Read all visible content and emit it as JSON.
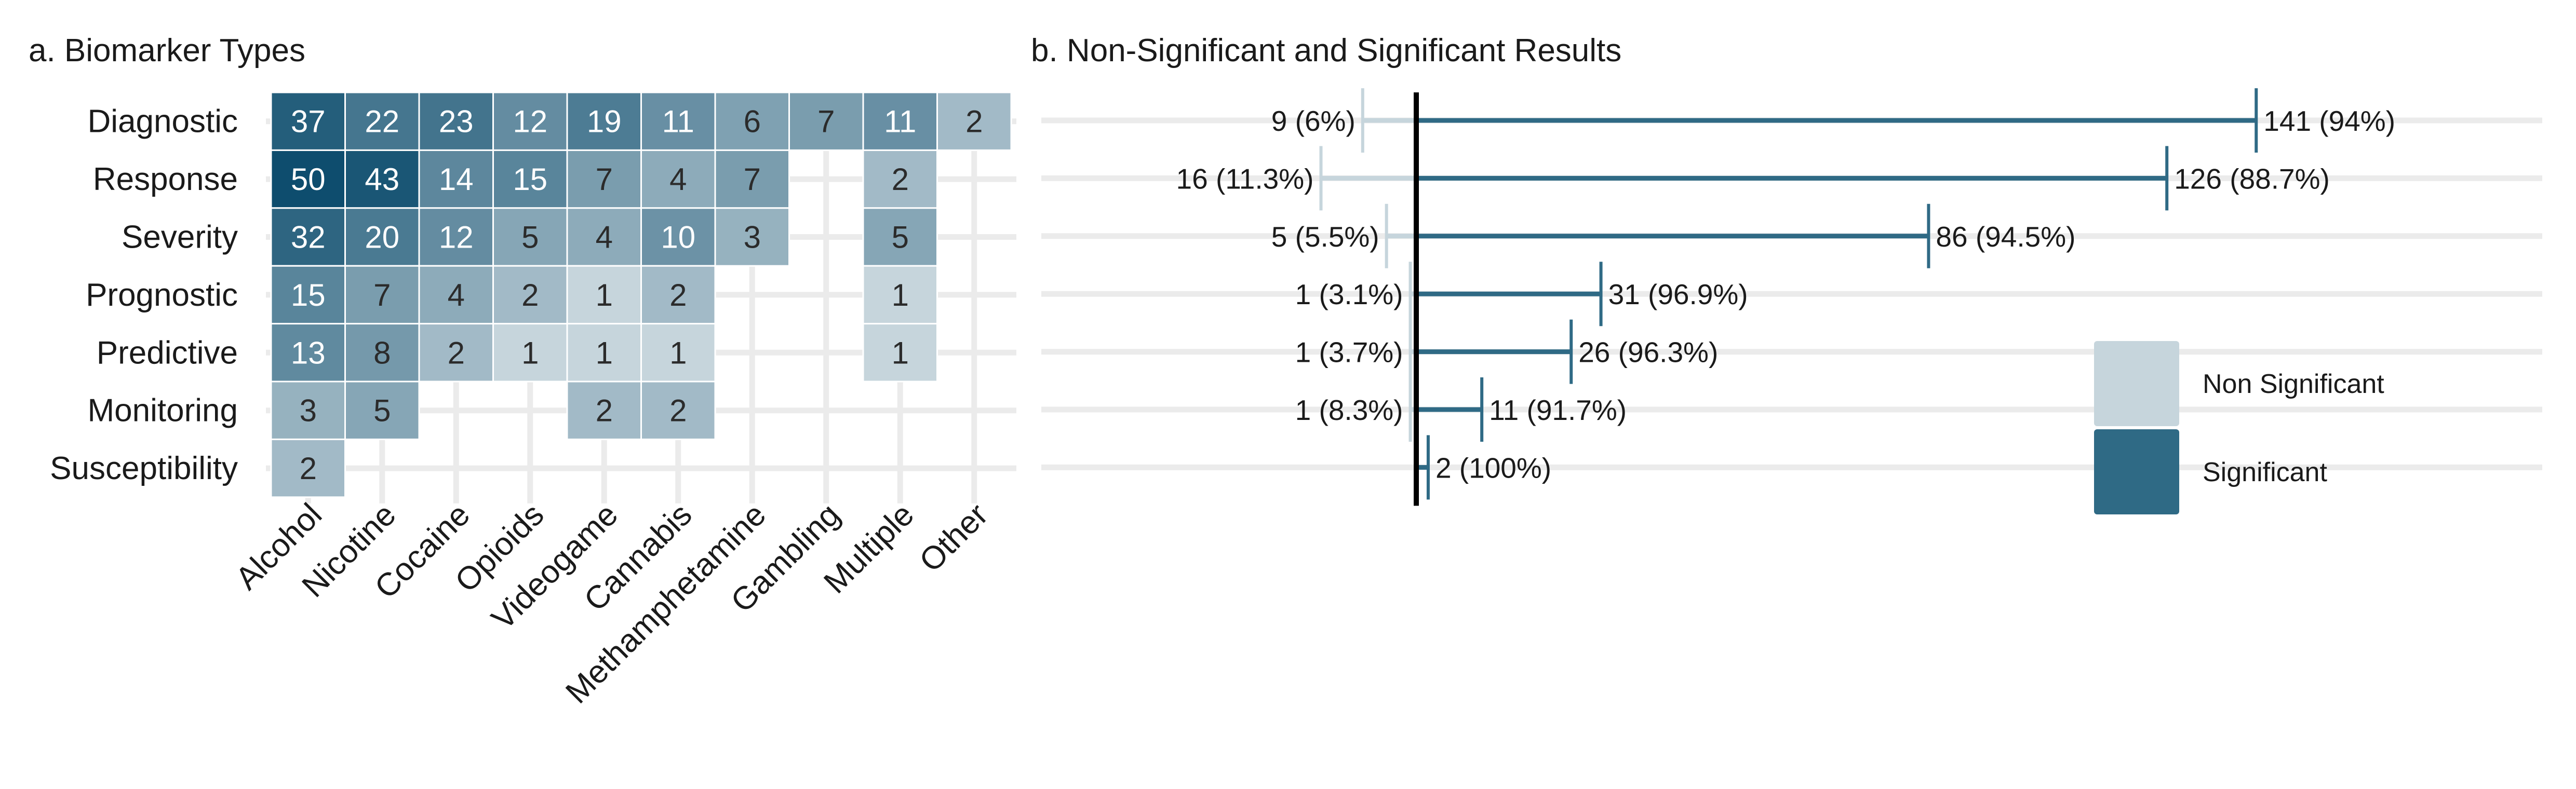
{
  "chart_data": [
    {
      "type": "heatmap",
      "title": "a. Biomarker Types",
      "rows": [
        "Diagnostic",
        "Response",
        "Severity",
        "Prognostic",
        "Predictive",
        "Monitoring",
        "Susceptibility"
      ],
      "columns": [
        "Alcohol",
        "Nicotine",
        "Cocaine",
        "Opioids",
        "Videogame",
        "Cannabis",
        "Methamphetamine",
        "Gambling",
        "Multiple",
        "Other"
      ],
      "values": [
        [
          37,
          22,
          23,
          12,
          19,
          11,
          6,
          7,
          11,
          2
        ],
        [
          50,
          43,
          14,
          15,
          7,
          4,
          7,
          null,
          2,
          null
        ],
        [
          32,
          20,
          12,
          5,
          4,
          10,
          3,
          null,
          5,
          null
        ],
        [
          15,
          7,
          4,
          2,
          1,
          2,
          null,
          null,
          1,
          null
        ],
        [
          13,
          8,
          2,
          1,
          1,
          1,
          null,
          null,
          1,
          null
        ],
        [
          3,
          5,
          null,
          null,
          2,
          2,
          null,
          null,
          null,
          null
        ],
        [
          2,
          null,
          null,
          null,
          null,
          null,
          null,
          null,
          null,
          null
        ]
      ],
      "color_low": "#c6d5dc",
      "color_high": "#0e4d6e",
      "grid": true
    },
    {
      "type": "bar",
      "title": "b. Non-Significant and Significant Results",
      "orientation": "diverging-horizontal",
      "categories": [
        "Diagnostic",
        "Response",
        "Severity",
        "Prognostic",
        "Predictive",
        "Monitoring",
        "Susceptibility"
      ],
      "series": [
        {
          "name": "Non Significant",
          "color": "#c6d5dc",
          "values": [
            9,
            16,
            5,
            1,
            1,
            1,
            0
          ],
          "labels": [
            "9 (6%)",
            "16 (11.3%)",
            "5 (5.5%)",
            "1 (3.1%)",
            "1 (3.7%)",
            "1 (8.3%)",
            ""
          ]
        },
        {
          "name": "Significant",
          "color": "#2f6a85",
          "values": [
            141,
            126,
            86,
            31,
            26,
            11,
            2
          ],
          "labels": [
            "141 (94%)",
            "126 (88.7%)",
            "86 (94.5%)",
            "31 (96.9%)",
            "26 (96.3%)",
            "11 (91.7%)",
            "2 (100%)"
          ]
        }
      ],
      "legend": {
        "position": "right",
        "entries": [
          "Non Significant",
          "Significant"
        ]
      },
      "grid": true
    }
  ]
}
